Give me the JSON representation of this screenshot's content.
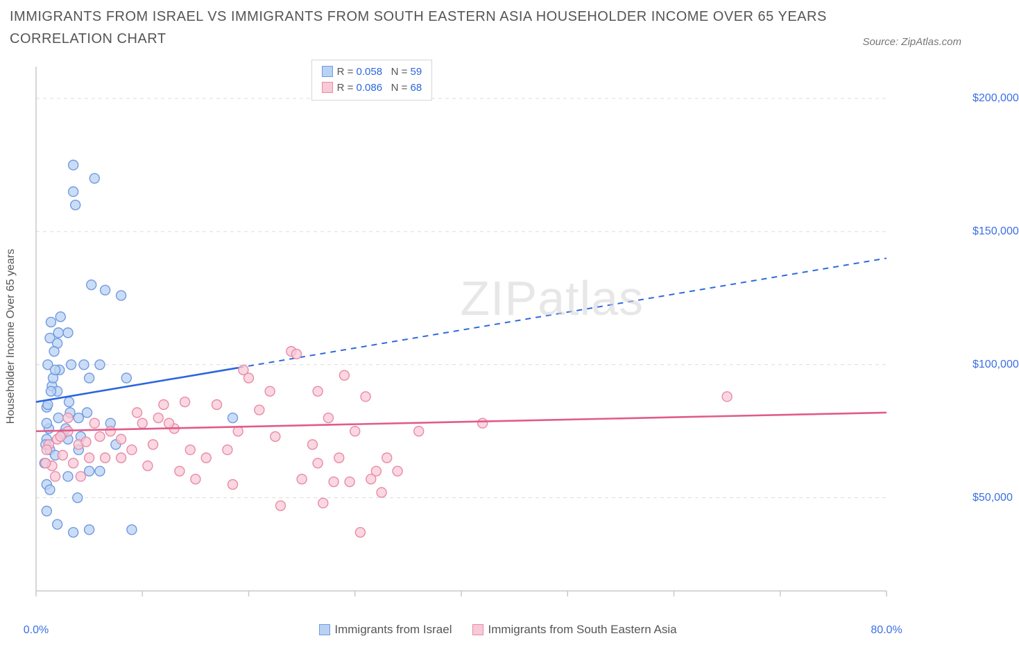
{
  "title": "IMMIGRANTS FROM ISRAEL VS IMMIGRANTS FROM SOUTH EASTERN ASIA HOUSEHOLDER INCOME OVER 65 YEARS CORRELATION CHART",
  "source_label": "Source: ZipAtlas.com",
  "ylabel": "Householder Income Over 65 years",
  "watermark_a": "ZIP",
  "watermark_b": "atlas",
  "chart": {
    "type": "scatter",
    "xlim": [
      0,
      80
    ],
    "ylim": [
      15000,
      212000
    ],
    "ygrid": [
      50000,
      100000,
      150000,
      200000
    ],
    "ytick_labels": [
      "$50,000",
      "$100,000",
      "$150,000",
      "$200,000"
    ],
    "xticks": [
      0,
      10,
      20,
      30,
      40,
      50,
      60,
      70,
      80
    ],
    "x_labels_shown": {
      "0": "0.0%",
      "80": "80.0%"
    },
    "background_color": "#ffffff",
    "grid_color": "#dcdcdc",
    "grid_dash": "5,5",
    "axis_color": "#c9c9c9",
    "marker_radius": 7,
    "marker_stroke_w": 1.4,
    "series": [
      {
        "name": "Immigrants from Israel",
        "fill": "#b9d1f3",
        "stroke": "#6f9ae0",
        "line_color": "#2b66e0",
        "R": "0.058",
        "N": "59",
        "trend": {
          "x1": 0,
          "y1": 86000,
          "x2": 80,
          "y2": 140000,
          "solid_until_x": 19
        },
        "points": [
          [
            1.0,
            72000
          ],
          [
            1.2,
            76000
          ],
          [
            1.3,
            68000
          ],
          [
            1.0,
            84000
          ],
          [
            1.5,
            92000
          ],
          [
            1.1,
            100000
          ],
          [
            1.3,
            110000
          ],
          [
            1.4,
            116000
          ],
          [
            1.0,
            78000
          ],
          [
            2.0,
            90000
          ],
          [
            2.2,
            98000
          ],
          [
            2.0,
            108000
          ],
          [
            2.3,
            118000
          ],
          [
            2.1,
            80000
          ],
          [
            3.0,
            72000
          ],
          [
            3.1,
            86000
          ],
          [
            3.3,
            100000
          ],
          [
            3.0,
            112000
          ],
          [
            3.5,
            175000
          ],
          [
            3.5,
            165000
          ],
          [
            3.7,
            160000
          ],
          [
            4.0,
            80000
          ],
          [
            4.5,
            100000
          ],
          [
            4.2,
            73000
          ],
          [
            5.0,
            95000
          ],
          [
            5.2,
            130000
          ],
          [
            5.5,
            170000
          ],
          [
            5.0,
            60000
          ],
          [
            6.0,
            60000
          ],
          [
            6.0,
            100000
          ],
          [
            6.5,
            128000
          ],
          [
            7.0,
            78000
          ],
          [
            7.5,
            70000
          ],
          [
            8.0,
            126000
          ],
          [
            8.5,
            95000
          ],
          [
            2.0,
            40000
          ],
          [
            1.0,
            55000
          ],
          [
            0.8,
            63000
          ],
          [
            0.9,
            70000
          ],
          [
            1.1,
            85000
          ],
          [
            1.4,
            90000
          ],
          [
            1.6,
            95000
          ],
          [
            1.8,
            98000
          ],
          [
            1.7,
            105000
          ],
          [
            2.1,
            112000
          ],
          [
            3.9,
            50000
          ],
          [
            3.5,
            37000
          ],
          [
            9.0,
            38000
          ],
          [
            3.0,
            58000
          ],
          [
            5.0,
            38000
          ],
          [
            1.3,
            53000
          ],
          [
            1.8,
            66000
          ],
          [
            2.5,
            74000
          ],
          [
            4.0,
            68000
          ],
          [
            4.8,
            82000
          ],
          [
            3.2,
            82000
          ],
          [
            2.8,
            76000
          ],
          [
            1.0,
            45000
          ],
          [
            18.5,
            80000
          ]
        ]
      },
      {
        "name": "Immigrants from South Eastern Asia",
        "fill": "#f8c9d7",
        "stroke": "#e88aa7",
        "line_color": "#e05b8a",
        "R": "0.086",
        "N": "68",
        "trend": {
          "x1": 0,
          "y1": 75000,
          "x2": 80,
          "y2": 82000,
          "solid_until_x": 80
        },
        "points": [
          [
            2.0,
            72000
          ],
          [
            3.0,
            75000
          ],
          [
            4.0,
            70000
          ],
          [
            5.0,
            65000
          ],
          [
            5.5,
            78000
          ],
          [
            6.0,
            73000
          ],
          [
            7.0,
            75000
          ],
          [
            8.0,
            72000
          ],
          [
            9.0,
            68000
          ],
          [
            10.0,
            78000
          ],
          [
            11.0,
            70000
          ],
          [
            12.0,
            85000
          ],
          [
            13.0,
            76000
          ],
          [
            14.0,
            86000
          ],
          [
            14.5,
            68000
          ],
          [
            15.0,
            57000
          ],
          [
            17.0,
            85000
          ],
          [
            18.0,
            68000
          ],
          [
            18.5,
            55000
          ],
          [
            19.0,
            75000
          ],
          [
            20.0,
            95000
          ],
          [
            21.0,
            83000
          ],
          [
            22.0,
            90000
          ],
          [
            22.5,
            73000
          ],
          [
            24.0,
            105000
          ],
          [
            24.5,
            104000
          ],
          [
            25.0,
            57000
          ],
          [
            23.0,
            47000
          ],
          [
            26.0,
            70000
          ],
          [
            26.5,
            90000
          ],
          [
            27.0,
            48000
          ],
          [
            28.0,
            56000
          ],
          [
            29.0,
            96000
          ],
          [
            30.0,
            75000
          ],
          [
            30.5,
            37000
          ],
          [
            31.0,
            88000
          ],
          [
            32.0,
            60000
          ],
          [
            32.5,
            52000
          ],
          [
            33.0,
            65000
          ],
          [
            34.0,
            60000
          ],
          [
            36.0,
            75000
          ],
          [
            42.0,
            78000
          ],
          [
            65.0,
            88000
          ],
          [
            1.5,
            62000
          ],
          [
            2.5,
            66000
          ],
          [
            1.8,
            58000
          ],
          [
            0.9,
            63000
          ],
          [
            1.2,
            70000
          ],
          [
            3.5,
            63000
          ],
          [
            4.2,
            58000
          ],
          [
            6.5,
            65000
          ],
          [
            9.5,
            82000
          ],
          [
            10.5,
            62000
          ],
          [
            12.5,
            78000
          ],
          [
            3.0,
            80000
          ],
          [
            1.0,
            68000
          ],
          [
            2.3,
            73000
          ],
          [
            4.7,
            71000
          ],
          [
            8.0,
            65000
          ],
          [
            11.5,
            80000
          ],
          [
            16.0,
            65000
          ],
          [
            13.5,
            60000
          ],
          [
            26.5,
            63000
          ],
          [
            29.5,
            56000
          ],
          [
            27.5,
            80000
          ],
          [
            19.5,
            98000
          ],
          [
            31.5,
            57000
          ],
          [
            28.5,
            65000
          ]
        ]
      }
    ]
  },
  "legend_top": {
    "R_label": "R =",
    "N_label": "N ="
  },
  "bottom_legend": {
    "items": [
      {
        "label": "Immigrants from Israel",
        "fill": "#b9d1f3",
        "stroke": "#6f9ae0"
      },
      {
        "label": "Immigrants from South Eastern Asia",
        "fill": "#f8c9d7",
        "stroke": "#e88aa7"
      }
    ]
  }
}
